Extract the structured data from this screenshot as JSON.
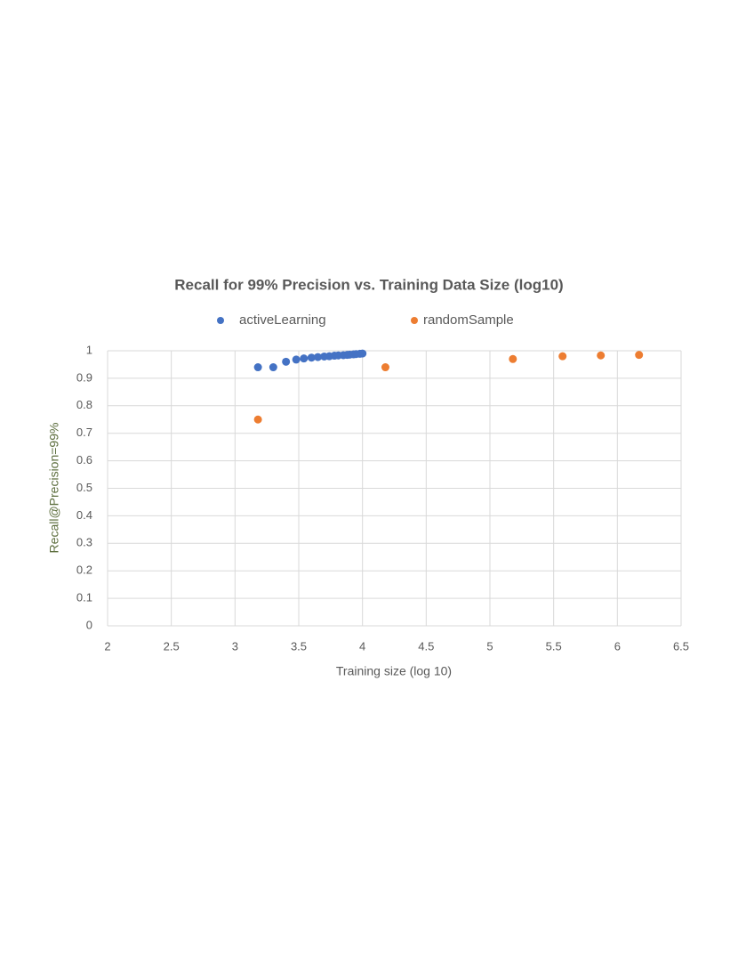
{
  "chart_data": {
    "type": "scatter",
    "title": "Recall for 99% Precision vs. Training Data Size (log10)",
    "x_label": "Training size (log 10)",
    "y_label": "Recall@Precision=99%",
    "xlim": [
      2,
      6.5
    ],
    "xticks": [
      2,
      2.5,
      3,
      3.5,
      4,
      4.5,
      5,
      5.5,
      6,
      6.5
    ],
    "ylim": [
      0,
      1
    ],
    "yticks": [
      0,
      0.1,
      0.2,
      0.3,
      0.4,
      0.5,
      0.6,
      0.7,
      0.8,
      0.9,
      1
    ],
    "grid": true,
    "legend": "top",
    "series": [
      {
        "name": "activeLearning",
        "color": "#4472c4",
        "x": [
          3.18,
          3.3,
          3.4,
          3.48,
          3.54,
          3.6,
          3.65,
          3.7,
          3.74,
          3.78,
          3.81,
          3.85,
          3.88,
          3.9,
          3.93,
          3.95,
          3.98,
          4.0
        ],
        "values": [
          0.94,
          0.94,
          0.96,
          0.968,
          0.972,
          0.975,
          0.977,
          0.979,
          0.98,
          0.982,
          0.983,
          0.984,
          0.985,
          0.986,
          0.987,
          0.988,
          0.989,
          0.99
        ]
      },
      {
        "name": "randomSample",
        "color": "#ed7d31",
        "x": [
          3.18,
          4.18,
          5.18,
          5.57,
          5.87,
          6.17
        ],
        "values": [
          0.75,
          0.94,
          0.97,
          0.98,
          0.983,
          0.985
        ]
      }
    ]
  }
}
